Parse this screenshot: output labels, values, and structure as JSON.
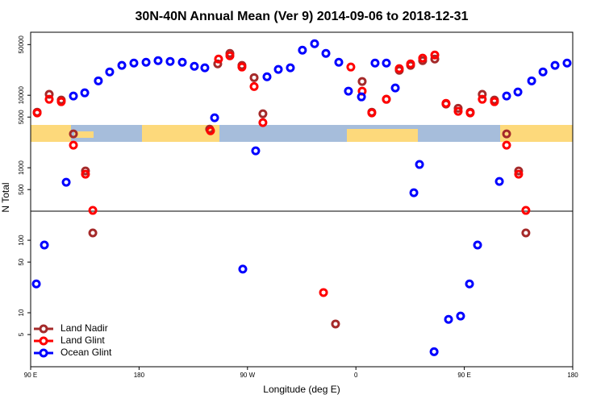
{
  "chart_data": {
    "type": "scatter",
    "title": "30N-40N Annual Mean (Ver 9)   2014-09-06 to 2018-12-31",
    "x_label": "Longitude (deg E)",
    "y_label": "N Total",
    "log_y": true,
    "legend": "bottom-left",
    "xlim": [
      90,
      540
    ],
    "xticks": [
      {
        "value": 90,
        "label": "90 E"
      },
      180,
      {
        "value": 270,
        "label": "90 W"
      },
      {
        "value": 360,
        "label": "0"
      },
      {
        "value": 450,
        "label": "90 E"
      },
      {
        "value": 540,
        "label": "180"
      }
    ],
    "ylim": [
      1.8,
      74000
    ],
    "yticks": [
      5,
      10,
      50,
      100,
      500,
      1000,
      5000,
      10000,
      50000
    ],
    "series": [
      {
        "name": "Land Nadir",
        "color": "#a52a2a",
        "x": [
          95.4,
          105.4,
          115.4,
          125.5,
          135.5,
          141.6,
          238.6,
          245.3,
          255.4,
          265.4,
          275.5,
          282.8,
          343.1,
          365.2,
          373.2,
          385.3,
          396.0,
          405.4,
          415.4,
          425.5,
          434.8,
          444.9,
          454.9,
          464.9,
          475.0,
          485.1,
          495.1,
          501.1
        ],
        "values": [
          5840,
          10300,
          8580,
          2930,
          903,
          126,
          3410,
          27100,
          37800,
          25800,
          17500,
          5550,
          7.0,
          15500,
          5840,
          8800,
          22100,
          25800,
          30000,
          31600,
          7550,
          6600,
          5840,
          10300,
          8580,
          2930,
          903,
          126
        ]
      },
      {
        "name": "Land Glint",
        "color": "#ff0000",
        "x": [
          95.4,
          105.4,
          115.4,
          125.5,
          135.5,
          141.6,
          239.3,
          246.0,
          255.4,
          265.4,
          275.5,
          282.8,
          333.1,
          355.8,
          365.2,
          373.2,
          385.3,
          396.0,
          405.4,
          415.4,
          425.5,
          434.8,
          444.9,
          454.9,
          464.9,
          475.0,
          485.1,
          495.1,
          501.1
        ],
        "values": [
          5700,
          8800,
          8150,
          2050,
          815,
          258,
          3240,
          31600,
          35000,
          24500,
          13200,
          4190,
          19,
          24500,
          11400,
          5700,
          8800,
          23300,
          27100,
          32500,
          35900,
          7740,
          6000,
          5700,
          8800,
          8150,
          2050,
          815,
          258
        ]
      },
      {
        "name": "Ocean Glint",
        "color": "#0000ff",
        "x": [
          94.7,
          101.4,
          119.5,
          125.5,
          134.9,
          146.2,
          155.6,
          165.7,
          175.7,
          185.8,
          195.8,
          205.8,
          215.9,
          225.9,
          234.6,
          242.7,
          266.1,
          276.8,
          286.2,
          295.6,
          305.6,
          315.6,
          325.7,
          335.1,
          345.8,
          353.8,
          364.6,
          375.9,
          385.3,
          392.7,
          408.1,
          412.8,
          424.9,
          436.9,
          446.9,
          454.3,
          461.0,
          479.1,
          485.1,
          494.5,
          505.9,
          515.3,
          525.3,
          535.3
        ],
        "values": [
          25,
          86,
          631,
          9750,
          10800,
          15800,
          21000,
          25800,
          27800,
          28500,
          30000,
          29300,
          28500,
          25100,
          23900,
          4890,
          40,
          1710,
          18000,
          22700,
          23900,
          41900,
          51400,
          37800,
          28500,
          11400,
          9500,
          27800,
          27800,
          12600,
          452,
          1110,
          2.9,
          8.1,
          9.0,
          25,
          86,
          647,
          9750,
          11100,
          15800,
          21000,
          25800,
          27800
        ]
      }
    ]
  }
}
